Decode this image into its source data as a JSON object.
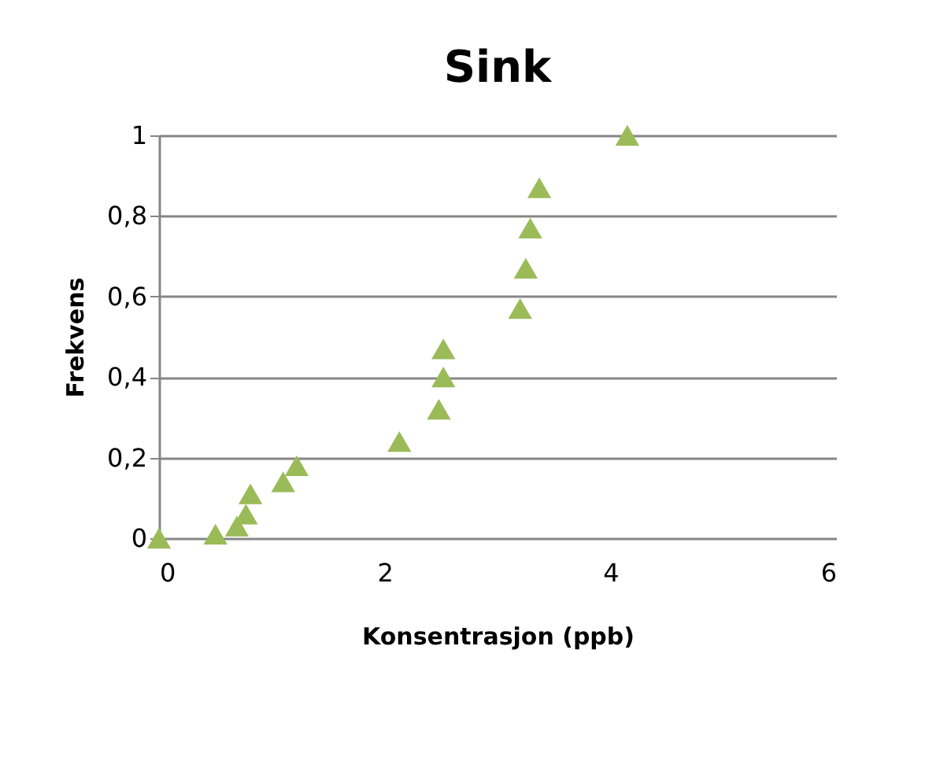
{
  "chart_data": {
    "type": "scatter",
    "title": "Sink",
    "xlabel": "Konsentrasjon (ppb)",
    "ylabel": "Frekvens",
    "x": [
      0,
      0.5,
      0.69,
      0.77,
      0.81,
      1.1,
      1.22,
      2.13,
      2.48,
      2.52,
      2.52,
      3.2,
      3.25,
      3.29,
      3.37,
      4.15
    ],
    "series": [
      {
        "color": "#9bbb59",
        "values": [
          0,
          0.01,
          0.03,
          0.06,
          0.11,
          0.14,
          0.18,
          0.24,
          0.32,
          0.4,
          0.47,
          0.57,
          0.67,
          0.77,
          0.87,
          1.0
        ]
      }
    ],
    "xlim": [
      0,
      6
    ],
    "xticks": [
      0,
      2,
      4,
      6
    ],
    "ylim": [
      0,
      1
    ],
    "yticks": [
      {
        "value": 0,
        "label": "0"
      },
      {
        "value": 0.2,
        "label": "0,2"
      },
      {
        "value": 0.4,
        "label": "0,4"
      },
      {
        "value": 0.6,
        "label": "0,6"
      },
      {
        "value": 0.8,
        "label": "0,8"
      },
      {
        "value": 1,
        "label": "1"
      }
    ],
    "grid": "y",
    "marker": "triangle"
  }
}
